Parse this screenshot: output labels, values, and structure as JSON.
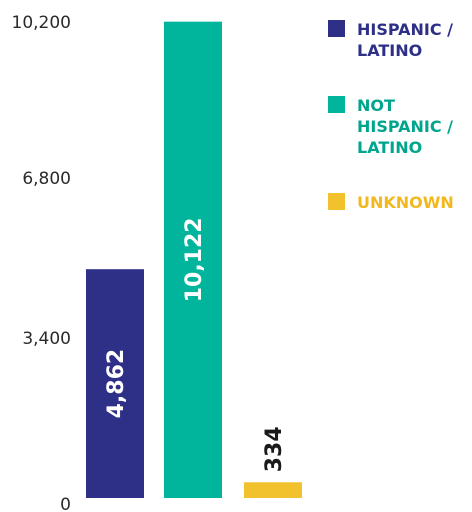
{
  "chart_data": {
    "type": "bar",
    "categories": [
      "HISPANIC / LATINO",
      "NOT HISPANIC / LATINO",
      "UNKNOWN"
    ],
    "values": [
      4862,
      10122,
      334
    ],
    "value_labels": [
      "4,862",
      "10,122",
      "334"
    ],
    "colors": [
      "#2e2f86",
      "#00b59c",
      "#f2c12e"
    ],
    "value_label_colors": [
      "#ffffff",
      "#ffffff",
      "#1a1a1a"
    ],
    "ylim": [
      0,
      10200
    ],
    "yticks": [
      0,
      3400,
      6800,
      10200
    ],
    "ytick_labels": [
      "0",
      "3,400",
      "6,800",
      "10,200"
    ],
    "grid": false,
    "legend_position": "top-right",
    "legend": [
      {
        "lines": [
          "HISPANIC /",
          "LATINO"
        ],
        "color": "#2e2f86",
        "text_color": "#2e2f86"
      },
      {
        "lines": [
          "NOT",
          "HISPANIC /",
          "LATINO"
        ],
        "color": "#00b59c",
        "text_color": "#00a58d"
      },
      {
        "lines": [
          "UNKNOWN"
        ],
        "color": "#f2c12e",
        "text_color": "#f2b81e"
      }
    ]
  }
}
